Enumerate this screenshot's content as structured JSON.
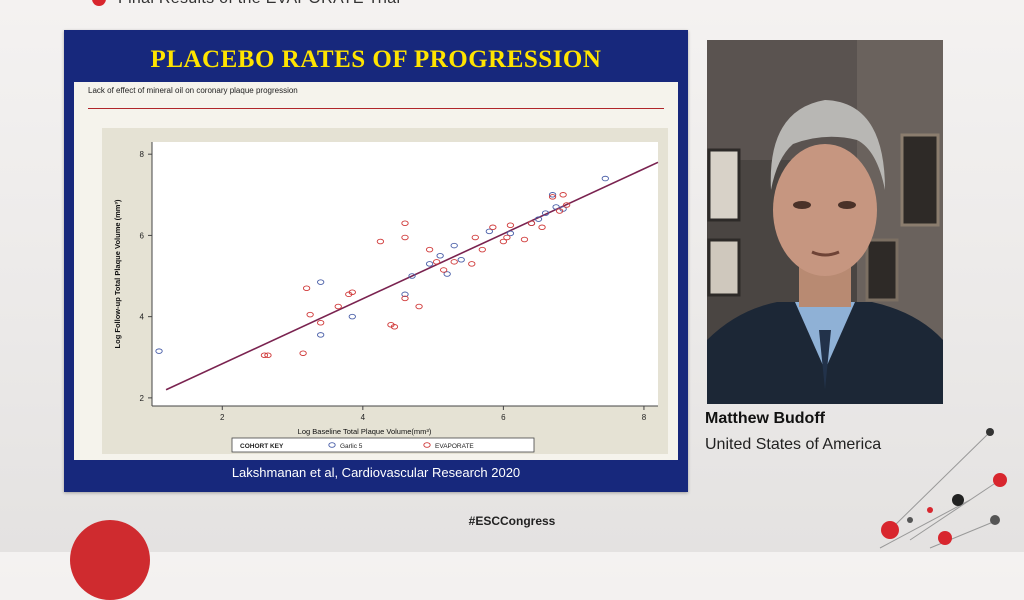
{
  "header": {
    "title": "Final Results of the EVAPORATE Trial"
  },
  "slide": {
    "title": "PLACEBO RATES OF PROGRESSION",
    "subtitle": "Lack of effect of mineral oil on coronary plaque progression",
    "citation": "Lakshmanan et al,  Cardiovascular Research 2020"
  },
  "speaker": {
    "name": "Matthew Budoff",
    "country": "United States of America"
  },
  "footer": {
    "hashtag": "#ESCCongress"
  },
  "colors": {
    "slide_bg": "#17287c",
    "title_yellow": "#ffe400",
    "garlic": "#4a5fa8",
    "evaporate": "#d03a3a",
    "fit_line": "#7a2350"
  },
  "chart_data": {
    "type": "scatter",
    "xlabel": "Log Baseline Total Plaque Volume(mm³)",
    "ylabel": "Log Follow-up Total Plaque Volume (mm³)",
    "xlim": [
      1,
      8.2
    ],
    "ylim": [
      1.8,
      8.3
    ],
    "xticks": [
      2,
      4,
      6,
      8
    ],
    "yticks": [
      2,
      4,
      6,
      8
    ],
    "legend": {
      "title": "COHORT KEY",
      "placement": "bottom"
    },
    "series": [
      {
        "name": "Garlic 5",
        "color": "#4a5fa8",
        "points": [
          [
            1.1,
            3.15
          ],
          [
            3.4,
            4.85
          ],
          [
            3.4,
            3.55
          ],
          [
            3.85,
            4.0
          ],
          [
            4.6,
            4.55
          ],
          [
            4.7,
            5.0
          ],
          [
            4.95,
            5.3
          ],
          [
            5.1,
            5.5
          ],
          [
            5.2,
            5.05
          ],
          [
            5.3,
            5.75
          ],
          [
            5.4,
            5.4
          ],
          [
            5.8,
            6.1
          ],
          [
            6.1,
            6.05
          ],
          [
            6.4,
            6.3
          ],
          [
            6.5,
            6.4
          ],
          [
            6.6,
            6.55
          ],
          [
            6.7,
            7.0
          ],
          [
            6.75,
            6.7
          ],
          [
            6.85,
            6.65
          ],
          [
            7.45,
            7.4
          ]
        ]
      },
      {
        "name": "EVAPORATE",
        "color": "#d03a3a",
        "points": [
          [
            2.6,
            3.05
          ],
          [
            2.65,
            3.05
          ],
          [
            3.15,
            3.1
          ],
          [
            3.2,
            4.7
          ],
          [
            3.25,
            4.05
          ],
          [
            3.4,
            3.85
          ],
          [
            3.65,
            4.25
          ],
          [
            3.8,
            4.55
          ],
          [
            3.85,
            4.6
          ],
          [
            4.25,
            5.85
          ],
          [
            4.4,
            3.8
          ],
          [
            4.45,
            3.75
          ],
          [
            4.6,
            6.3
          ],
          [
            4.6,
            5.95
          ],
          [
            4.6,
            4.45
          ],
          [
            4.8,
            4.25
          ],
          [
            4.95,
            5.65
          ],
          [
            5.05,
            5.35
          ],
          [
            5.15,
            5.15
          ],
          [
            5.3,
            5.35
          ],
          [
            5.55,
            5.3
          ],
          [
            5.6,
            5.95
          ],
          [
            5.7,
            5.65
          ],
          [
            5.85,
            6.2
          ],
          [
            6.0,
            5.85
          ],
          [
            6.05,
            5.95
          ],
          [
            6.1,
            6.25
          ],
          [
            6.3,
            5.9
          ],
          [
            6.4,
            6.3
          ],
          [
            6.55,
            6.2
          ],
          [
            6.7,
            6.95
          ],
          [
            6.8,
            6.6
          ],
          [
            6.85,
            7.0
          ],
          [
            6.9,
            6.75
          ]
        ]
      }
    ],
    "fit_line": {
      "x": [
        1.2,
        8.2
      ],
      "y": [
        2.2,
        7.8
      ]
    }
  }
}
